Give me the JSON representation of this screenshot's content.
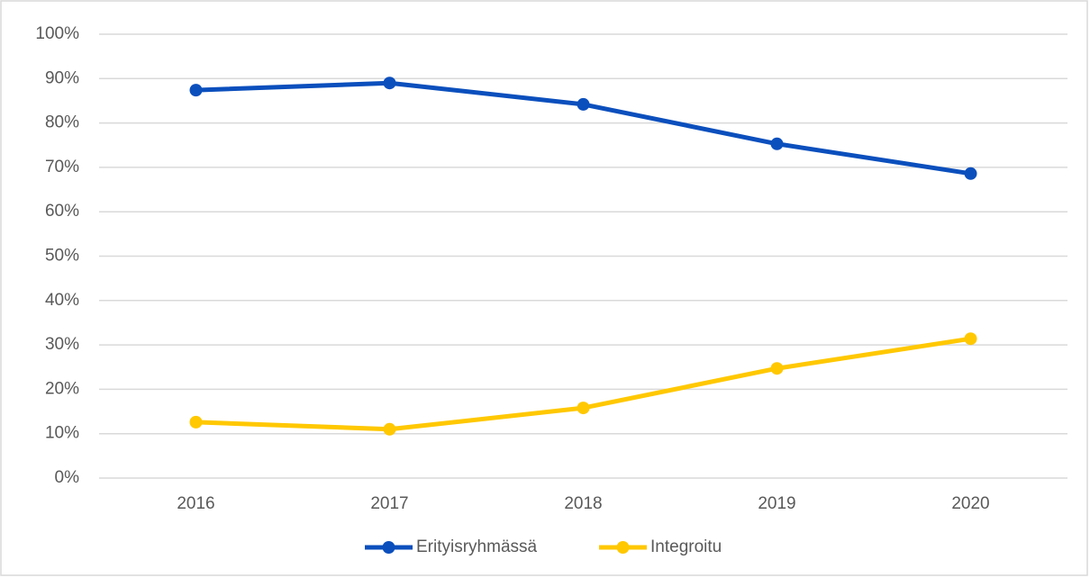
{
  "chart_data": {
    "type": "line",
    "categories": [
      "2016",
      "2017",
      "2018",
      "2019",
      "2020"
    ],
    "series": [
      {
        "name": "Erityisryhmässä",
        "color": "#0b4fbd",
        "values": [
          87.4,
          89.0,
          84.2,
          75.3,
          68.6
        ]
      },
      {
        "name": "Integroitu",
        "color": "#ffc800",
        "values": [
          12.6,
          11.0,
          15.8,
          24.7,
          31.4
        ]
      }
    ],
    "ylim": [
      0,
      100
    ],
    "yticks": [
      {
        "value": 0,
        "label": "0%"
      },
      {
        "value": 10,
        "label": "10%"
      },
      {
        "value": 20,
        "label": "20%"
      },
      {
        "value": 30,
        "label": "30%"
      },
      {
        "value": 40,
        "label": "40%"
      },
      {
        "value": 50,
        "label": "50%"
      },
      {
        "value": 60,
        "label": "60%"
      },
      {
        "value": 70,
        "label": "70%"
      },
      {
        "value": 80,
        "label": "80%"
      },
      {
        "value": 90,
        "label": "90%"
      },
      {
        "value": 100,
        "label": "100%"
      }
    ],
    "grid": true,
    "legend": "bottom"
  }
}
